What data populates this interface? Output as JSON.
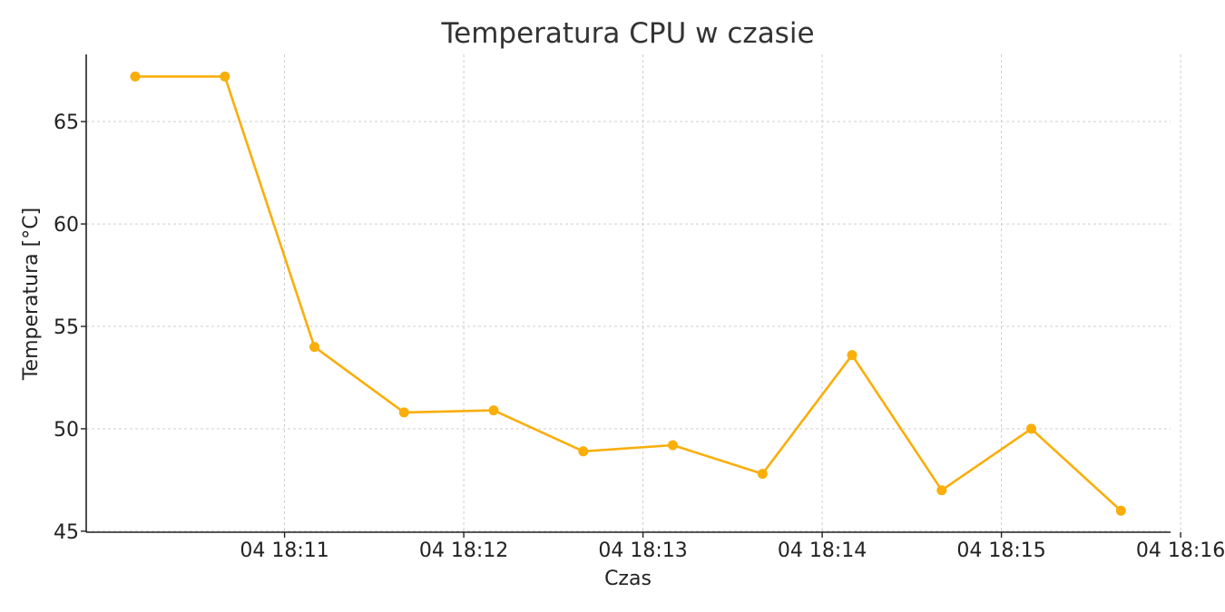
{
  "chart_data": {
    "type": "line",
    "title": "Temperatura CPU w czasie",
    "xlabel": "Czas",
    "ylabel": "Temperatura [°C]",
    "x_tick_labels": [
      "04 18:11",
      "04 18:12",
      "04 18:13",
      "04 18:14",
      "04 18:15",
      "04 18:16"
    ],
    "y_ticks": [
      45,
      50,
      55,
      60,
      65
    ],
    "grid": true,
    "series": [
      {
        "color": "#F9AE0A",
        "x": [
          "18:10:10",
          "18:10:40",
          "18:11:10",
          "18:11:40",
          "18:12:10",
          "18:12:40",
          "18:13:10",
          "18:13:40",
          "18:14:10",
          "18:14:40",
          "18:15:10",
          "18:15:40"
        ],
        "values": [
          67.2,
          67.2,
          54.0,
          50.8,
          50.9,
          48.9,
          49.2,
          47.8,
          53.6,
          47.0,
          50.0,
          46.0
        ]
      }
    ]
  }
}
